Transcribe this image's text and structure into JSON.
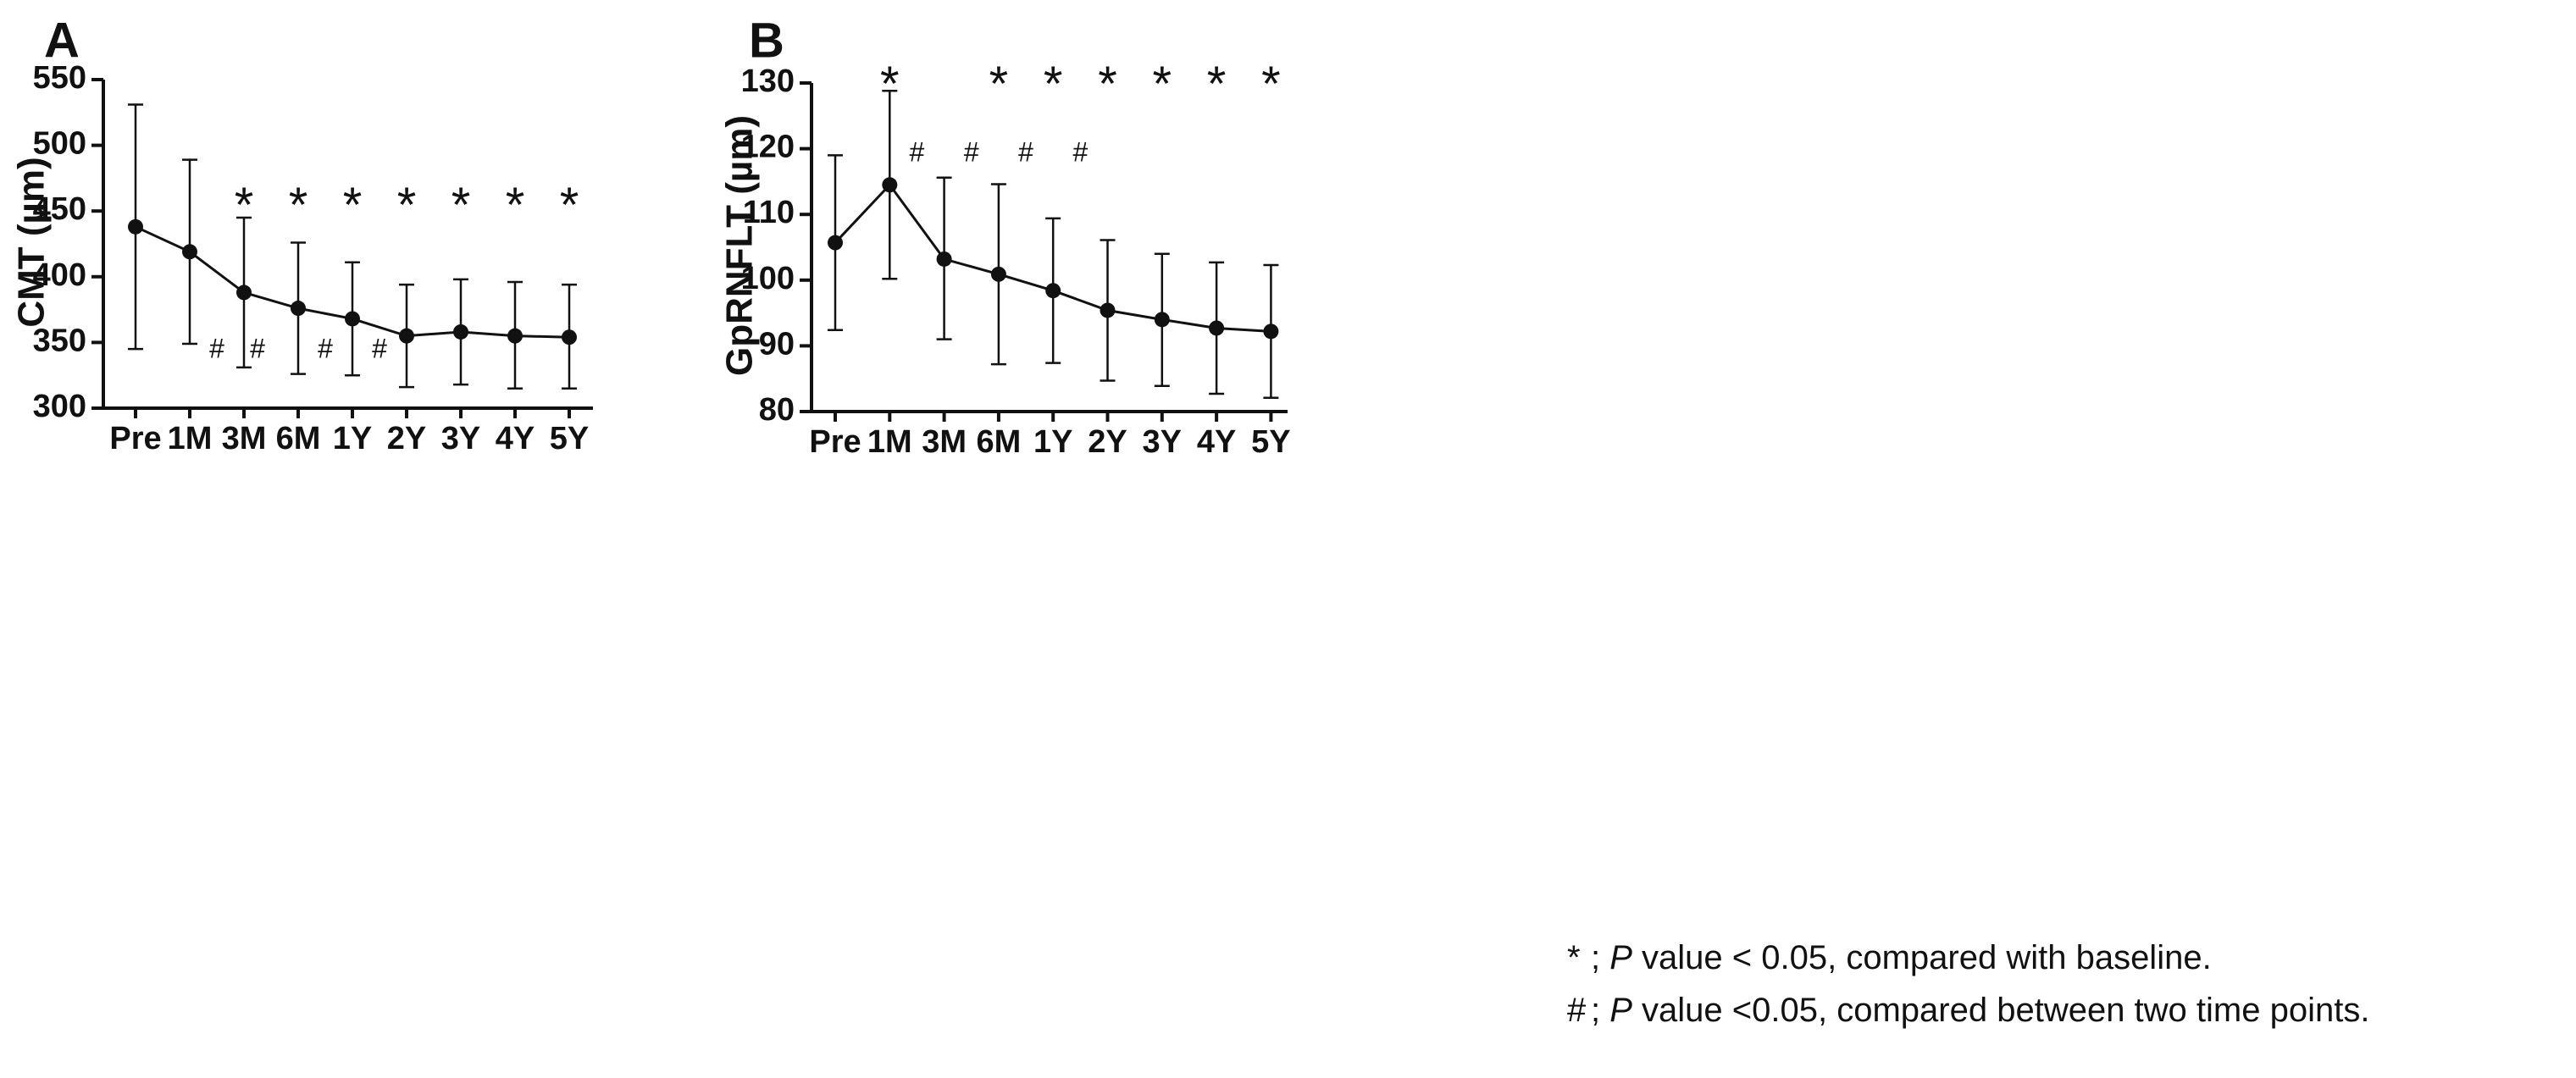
{
  "chart_data": [
    {
      "type": "line",
      "panel": "A",
      "ylabel": "CMT (µm)",
      "xlabel": "",
      "categories": [
        "Pre",
        "1M",
        "3M",
        "6M",
        "1Y",
        "2Y",
        "3Y",
        "4Y",
        "5Y"
      ],
      "ylim": [
        300,
        550
      ],
      "yticks": [
        300,
        350,
        400,
        450,
        500,
        550
      ],
      "series": [
        {
          "name": "CMT",
          "values": [
            438,
            419,
            388,
            376,
            368,
            355,
            358,
            355,
            354
          ],
          "err_upper": [
            531,
            489,
            445,
            426,
            411,
            394,
            398,
            396,
            394
          ],
          "err_lower": [
            345,
            349,
            331,
            326,
            325,
            316,
            318,
            315,
            315
          ]
        }
      ],
      "significance_baseline": {
        "symbol": "*",
        "categories": [
          "3M",
          "6M",
          "1Y",
          "2Y",
          "3Y",
          "4Y",
          "5Y"
        ]
      },
      "significance_between": {
        "symbol": "#",
        "positions": [
          1.5,
          2.25,
          3.5,
          4.5
        ]
      }
    },
    {
      "type": "line",
      "panel": "B",
      "ylabel": "GpRNFLT (µm)",
      "xlabel": "",
      "categories": [
        "Pre",
        "1M",
        "3M",
        "6M",
        "1Y",
        "2Y",
        "3Y",
        "4Y",
        "5Y"
      ],
      "ylim": [
        80,
        130
      ],
      "yticks": [
        80,
        90,
        100,
        110,
        120,
        130
      ],
      "series": [
        {
          "name": "GpRNFLT",
          "values": [
            105.7,
            114.5,
            103.2,
            100.9,
            98.4,
            95.4,
            94.0,
            92.7,
            92.2
          ],
          "err_upper": [
            119.0,
            128.8,
            115.6,
            114.6,
            109.4,
            106.1,
            104.0,
            102.7,
            102.3
          ],
          "err_lower": [
            92.4,
            100.2,
            91.0,
            87.2,
            87.4,
            84.7,
            83.9,
            82.7,
            82.1
          ]
        }
      ],
      "significance_baseline": {
        "symbol": "*",
        "categories": [
          "1M",
          "6M",
          "1Y",
          "2Y",
          "3Y",
          "4Y",
          "5Y"
        ]
      },
      "significance_between": {
        "symbol": "#",
        "positions": [
          1.5,
          2.5,
          3.5,
          4.5
        ]
      }
    }
  ],
  "legend": {
    "baseline_symbol": "*",
    "baseline_sep": ";",
    "baseline_p": "P",
    "baseline_text": " value < 0.05, compared with baseline.",
    "between_symbol": "#",
    "between_sep": ";",
    "between_p": "P",
    "between_text": " value <0.05, compared between two time points."
  }
}
